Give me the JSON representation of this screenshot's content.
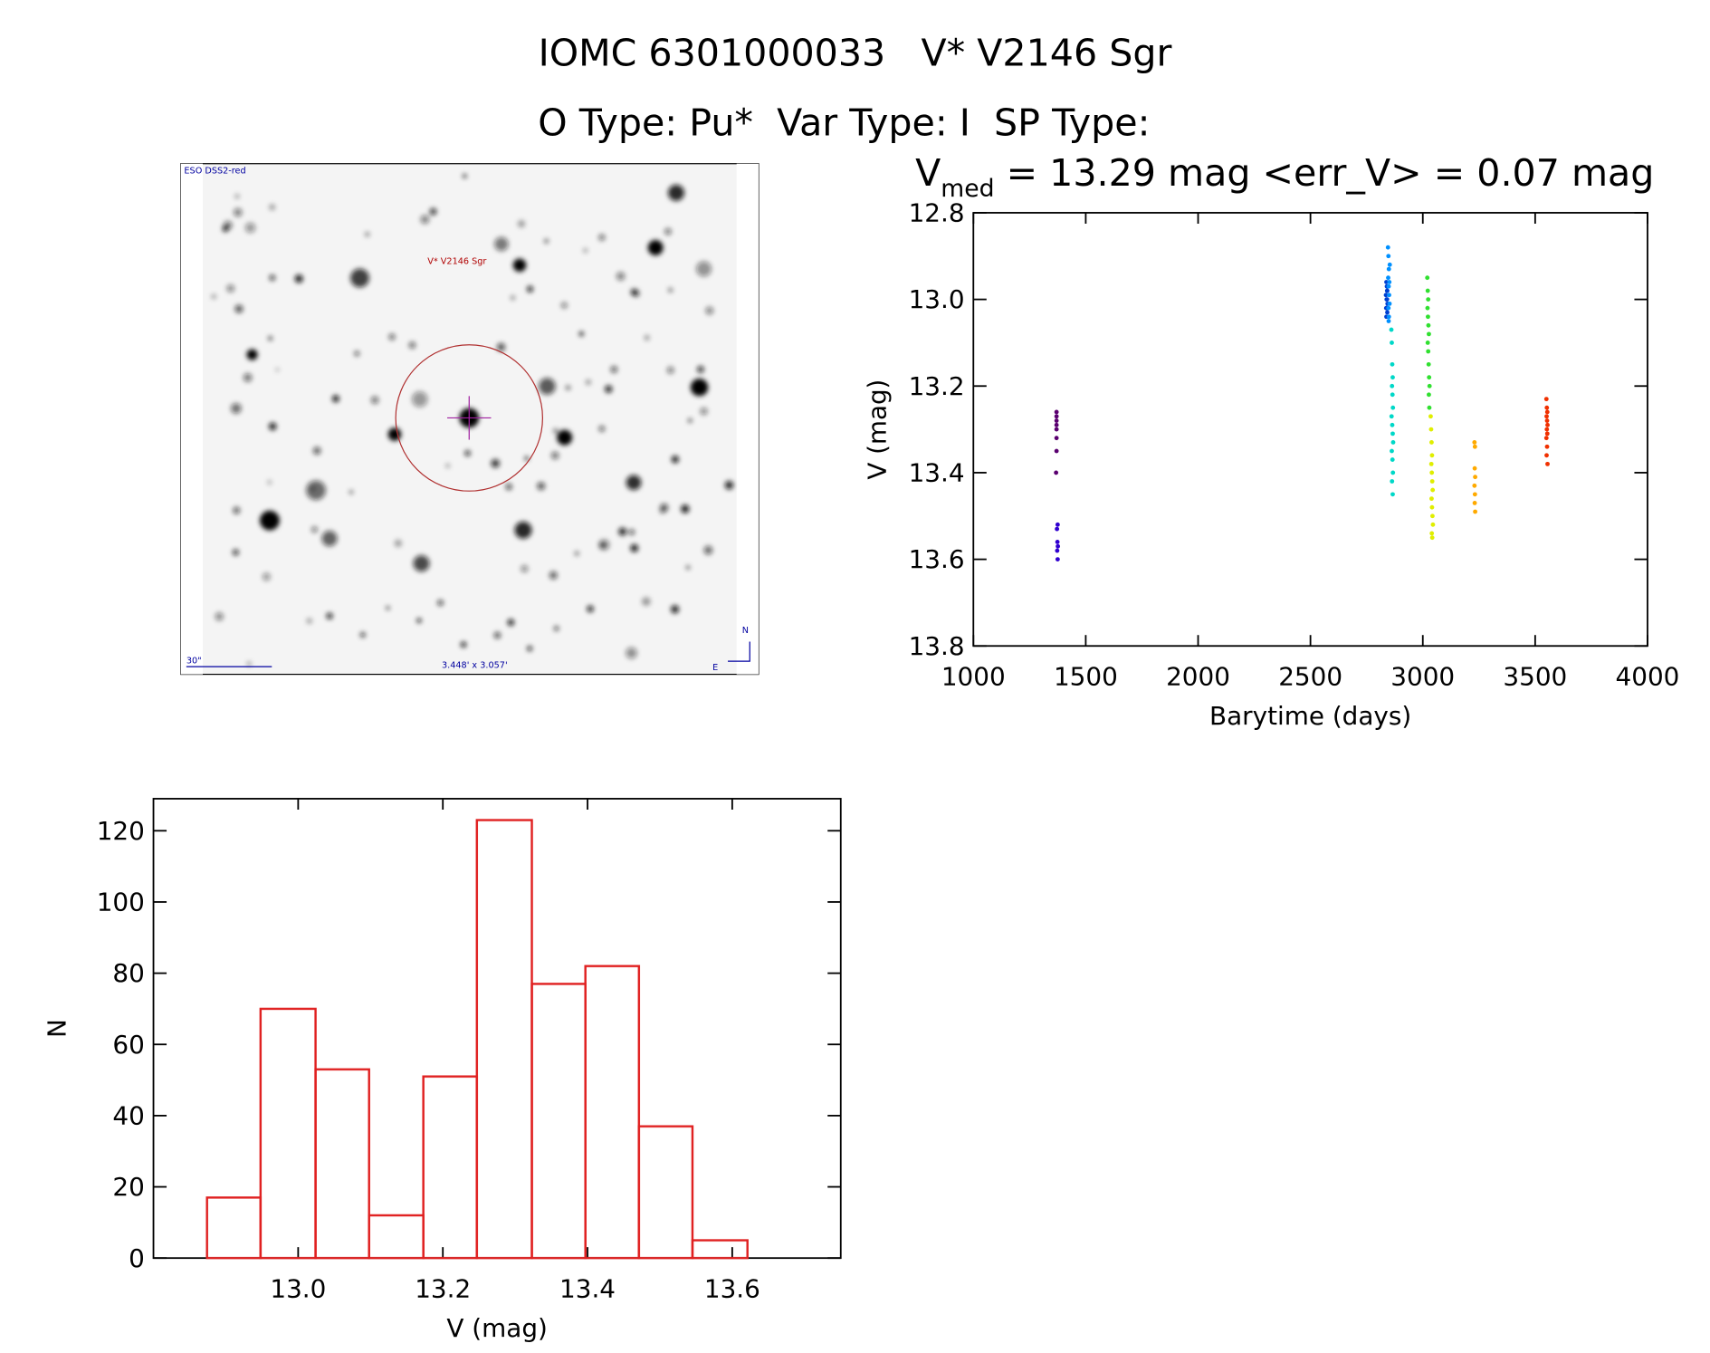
{
  "header": {
    "title": "IOMC 6301000033   V* V2146 Sgr",
    "subtitle": "O Type: Pu*  Var Type: I  SP Type:"
  },
  "image": {
    "survey": "ESO DSS2-red",
    "target": "V* V2146 Sgr",
    "scale": "30\"",
    "field": "3.448' x 3.057'",
    "north": "N",
    "east": "E"
  },
  "chart_data": [
    {
      "type": "scatter",
      "title": {
        "main": "V",
        "subscript": "med",
        "rest": " = 13.29 mag <err_V> = 0.07 mag"
      },
      "xlabel": "Barytime (days)",
      "ylabel": "V (mag)",
      "xlim": [
        1000,
        4000
      ],
      "xticks": [
        1000,
        1500,
        2000,
        2500,
        3000,
        3500,
        4000
      ],
      "ylim": [
        13.8,
        12.8
      ],
      "yticks": [
        12.8,
        {
          "value": 13,
          "label": "13.0"
        },
        13.2,
        13.4,
        13.6,
        13.8
      ],
      "grid": false,
      "series": [
        {
          "color": "#5a0070",
          "x": [
            1370,
            1370,
            1370,
            1370,
            1370,
            1370,
            1370,
            1368
          ],
          "values": [
            13.26,
            13.27,
            13.28,
            13.29,
            13.3,
            13.32,
            13.35,
            13.4
          ]
        },
        {
          "color": "#3000d0",
          "x": [
            1375,
            1372,
            1374,
            1376,
            1373,
            1375
          ],
          "values": [
            13.52,
            13.53,
            13.56,
            13.57,
            13.58,
            13.6
          ]
        },
        {
          "color": "#0040d0",
          "x": [
            2838,
            2840,
            2842,
            2836,
            2839,
            2841,
            2843,
            2837,
            2840,
            2842,
            2838,
            2841
          ],
          "values": [
            12.96,
            12.97,
            12.98,
            12.99,
            13.0,
            13.0,
            13.01,
            13.02,
            13.02,
            13.03,
            13.04,
            12.98
          ]
        },
        {
          "color": "#0090ff",
          "x": [
            2845,
            2847,
            2849,
            2846,
            2848,
            2850,
            2852,
            2847,
            2849,
            2851,
            2853,
            2848
          ],
          "values": [
            12.88,
            12.9,
            12.93,
            12.95,
            12.97,
            12.99,
            13.01,
            13.02,
            13.04,
            12.96,
            12.92,
            13.05
          ]
        },
        {
          "color": "#00d8c8",
          "x": [
            2860,
            2862,
            2864,
            2866,
            2863,
            2865,
            2867,
            2861,
            2864,
            2866,
            2868,
            2862,
            2865,
            2867,
            2863,
            2866
          ],
          "values": [
            13.07,
            13.1,
            13.15,
            13.18,
            13.2,
            13.22,
            13.25,
            13.27,
            13.29,
            13.31,
            13.33,
            13.35,
            13.37,
            13.4,
            13.42,
            13.45
          ]
        },
        {
          "color": "#30e030",
          "x": [
            3020,
            3022,
            3024,
            3021,
            3023,
            3025,
            3027,
            3022,
            3024,
            3026,
            3028,
            3030,
            3027,
            3029
          ],
          "values": [
            12.95,
            12.98,
            13.0,
            13.02,
            13.04,
            13.06,
            13.08,
            13.1,
            13.12,
            13.15,
            13.18,
            13.2,
            13.22,
            13.25
          ]
        },
        {
          "color": "#e0ee00",
          "x": [
            3035,
            3037,
            3039,
            3041,
            3038,
            3040,
            3042,
            3044,
            3039,
            3041,
            3043,
            3045,
            3040,
            3042
          ],
          "values": [
            13.27,
            13.3,
            13.33,
            13.36,
            13.38,
            13.4,
            13.42,
            13.44,
            13.46,
            13.48,
            13.5,
            13.52,
            13.54,
            13.55
          ]
        },
        {
          "color": "#ffaa00",
          "x": [
            3230,
            3232,
            3231,
            3233,
            3230,
            3232,
            3231,
            3233
          ],
          "values": [
            13.33,
            13.34,
            13.39,
            13.41,
            13.43,
            13.45,
            13.47,
            13.49
          ]
        },
        {
          "color": "#f03000",
          "x": [
            3550,
            3552,
            3554,
            3551,
            3553,
            3555,
            3552,
            3554,
            3550,
            3553,
            3551,
            3555
          ],
          "values": [
            13.23,
            13.25,
            13.26,
            13.27,
            13.28,
            13.29,
            13.3,
            13.31,
            13.32,
            13.34,
            13.36,
            13.38
          ]
        }
      ]
    },
    {
      "type": "histogram",
      "xlabel": "V (mag)",
      "ylabel": "N",
      "color": "#e02020",
      "xlim": [
        12.8,
        13.75
      ],
      "xticks": [
        {
          "value": 13,
          "label": "13.0"
        },
        13.2,
        13.4,
        13.6
      ],
      "ylim": [
        0,
        129
      ],
      "yticks": [
        0,
        20,
        40,
        60,
        80,
        100,
        120
      ],
      "grid": false,
      "bins": [
        12.874,
        12.948,
        13.024,
        13.098,
        13.173,
        13.247,
        13.323,
        13.397,
        13.471,
        13.545,
        13.621
      ],
      "values": [
        17,
        70,
        53,
        12,
        51,
        123,
        77,
        82,
        37,
        5
      ]
    }
  ]
}
